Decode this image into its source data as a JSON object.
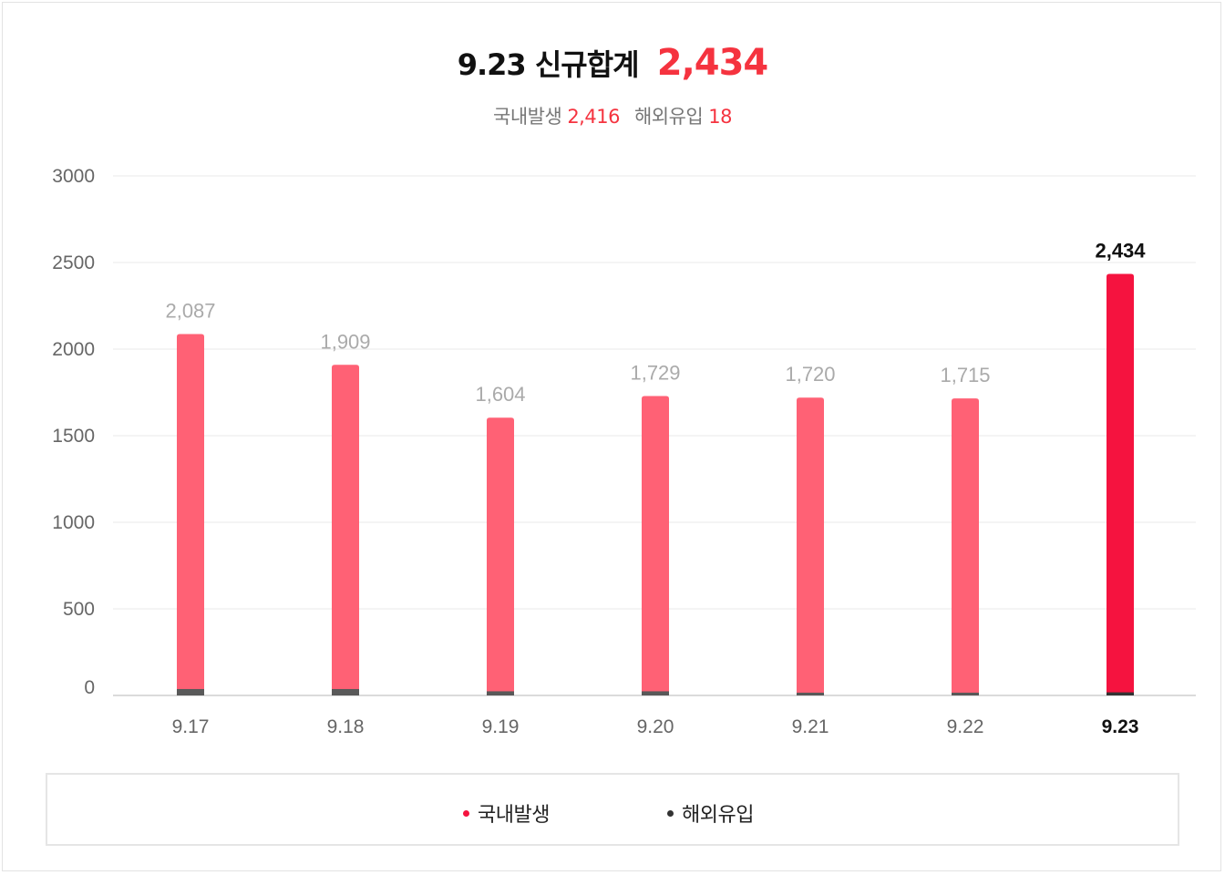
{
  "header": {
    "date": "9.23",
    "label": "신규합계",
    "total": "2,434"
  },
  "subheader": {
    "domestic_label": "국내발생",
    "domestic_value": "2,416",
    "imported_label": "해외유입",
    "imported_value": "18"
  },
  "colors": {
    "domestic": "#ff6175",
    "domestic_highlight": "#f5133f",
    "imported": "#595959",
    "imported_highlight": "#333333",
    "label_muted": "#aaaaaa",
    "label_highlight": "#111111"
  },
  "legend": {
    "domestic": "국내발생",
    "imported": "해외유입"
  },
  "chart_data": {
    "type": "bar",
    "stacked": true,
    "categories": [
      "9.17",
      "9.18",
      "9.19",
      "9.20",
      "9.21",
      "9.22",
      "9.23"
    ],
    "series": [
      {
        "name": "국내발생",
        "values": [
          2050,
          1872,
          1580,
          1705,
          1704,
          1699,
          2416
        ]
      },
      {
        "name": "해외유입",
        "values": [
          37,
          37,
          24,
          24,
          16,
          16,
          18
        ]
      }
    ],
    "totals": [
      2087,
      1909,
      1604,
      1729,
      1720,
      1715,
      2434
    ],
    "total_labels": [
      "2,087",
      "1,909",
      "1,604",
      "1,729",
      "1,720",
      "1,715",
      "2,434"
    ],
    "highlight_index": 6,
    "yticks": [
      0,
      500,
      1000,
      1500,
      2000,
      2500,
      3000
    ],
    "ylim": [
      0,
      3000
    ],
    "grid": true,
    "legend_position": "bottom"
  }
}
